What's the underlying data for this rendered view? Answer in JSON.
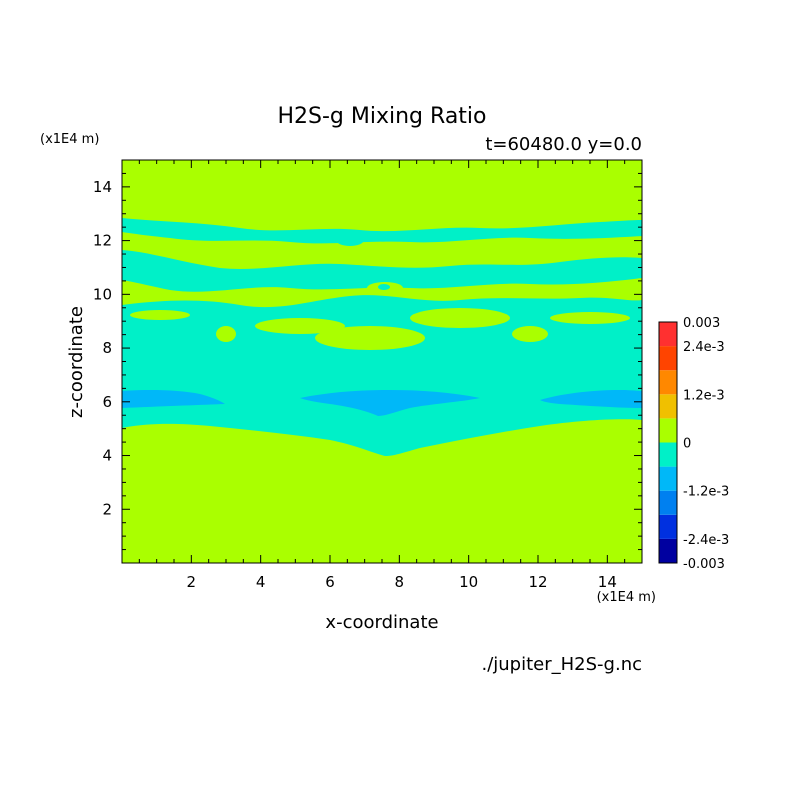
{
  "chart_data": {
    "type": "heatmap",
    "title": "H2S-g Mixing Ratio",
    "subtitle": "t=60480.0 y=0.0",
    "xlabel": "x-coordinate",
    "ylabel": "z-coordinate",
    "x_unit": "(x1E4 m)",
    "y_unit": "(x1E4 m)",
    "source": "./jupiter_H2S-g.nc",
    "xlim": [
      0,
      15
    ],
    "ylim": [
      0,
      15
    ],
    "x_ticks": [
      2,
      4,
      6,
      8,
      10,
      12,
      14
    ],
    "y_ticks": [
      2,
      4,
      6,
      8,
      10,
      12,
      14
    ],
    "colorbar": {
      "levels": [
        -0.003,
        -0.0024,
        -0.0018,
        -0.0012,
        -0.0006,
        0,
        0.0006,
        0.0012,
        0.0018,
        0.0024,
        0.003
      ],
      "colors": [
        "#0000a0",
        "#0030e0",
        "#0080f0",
        "#00b8f8",
        "#00f0c8",
        "#aaff00",
        "#f0c000",
        "#ff8800",
        "#ff4400",
        "#ff3030"
      ],
      "tick_labels": [
        "0.003",
        "2.4e-3",
        "1.2e-3",
        "0",
        "-1.2e-3",
        "-2.4e-3",
        "-0.003"
      ]
    },
    "fields": {
      "background": "#aaff00",
      "negative_band": "#00f0c8",
      "deep_negative": "#00b8f8"
    }
  }
}
